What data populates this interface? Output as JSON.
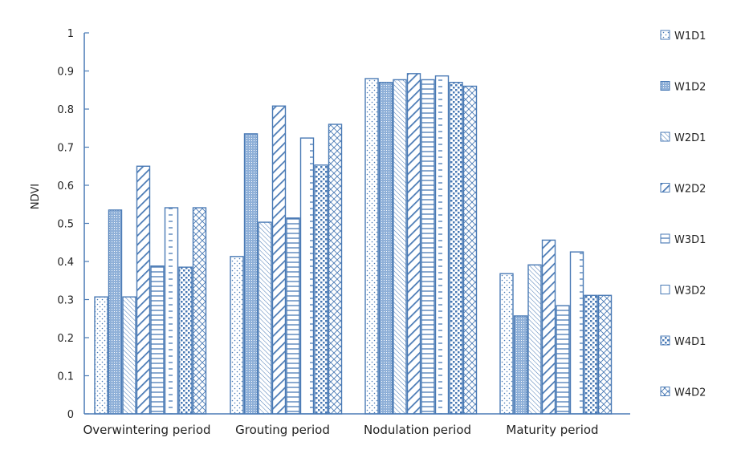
{
  "chart_data": {
    "type": "bar",
    "ylabel": "NDVI",
    "xlabel": "",
    "ylim": [
      0,
      1
    ],
    "yticks": [
      "0",
      "0.1",
      "0.2",
      "0.3",
      "0.4",
      "0.5",
      "0.6",
      "0.7",
      "0.8",
      "0.9",
      "1"
    ],
    "categories": [
      "Overwintering period",
      "Grouting period",
      "Nodulation period",
      "Maturity period"
    ],
    "legend_position": "right",
    "grid": false,
    "color": "#4a7ab5",
    "series": [
      {
        "name": "W1D1",
        "pattern": "sparse-dots",
        "values": [
          0.307,
          0.413,
          0.88,
          0.368
        ]
      },
      {
        "name": "W1D2",
        "pattern": "dense-dots",
        "values": [
          0.535,
          0.735,
          0.87,
          0.257
        ]
      },
      {
        "name": "W2D1",
        "pattern": "thin-back-diagonal",
        "values": [
          0.307,
          0.503,
          0.877,
          0.391
        ]
      },
      {
        "name": "W2D2",
        "pattern": "thick-forward-diagonal",
        "values": [
          0.65,
          0.808,
          0.893,
          0.456
        ]
      },
      {
        "name": "W3D1",
        "pattern": "horizontal-lines",
        "values": [
          0.388,
          0.514,
          0.877,
          0.284
        ]
      },
      {
        "name": "W3D2",
        "pattern": "dashed-horizontal",
        "values": [
          0.541,
          0.724,
          0.887,
          0.425
        ]
      },
      {
        "name": "W4D1",
        "pattern": "checker-dots",
        "values": [
          0.385,
          0.653,
          0.87,
          0.311
        ]
      },
      {
        "name": "W4D2",
        "pattern": "crosshatch",
        "values": [
          0.541,
          0.76,
          0.86,
          0.311
        ]
      }
    ]
  }
}
